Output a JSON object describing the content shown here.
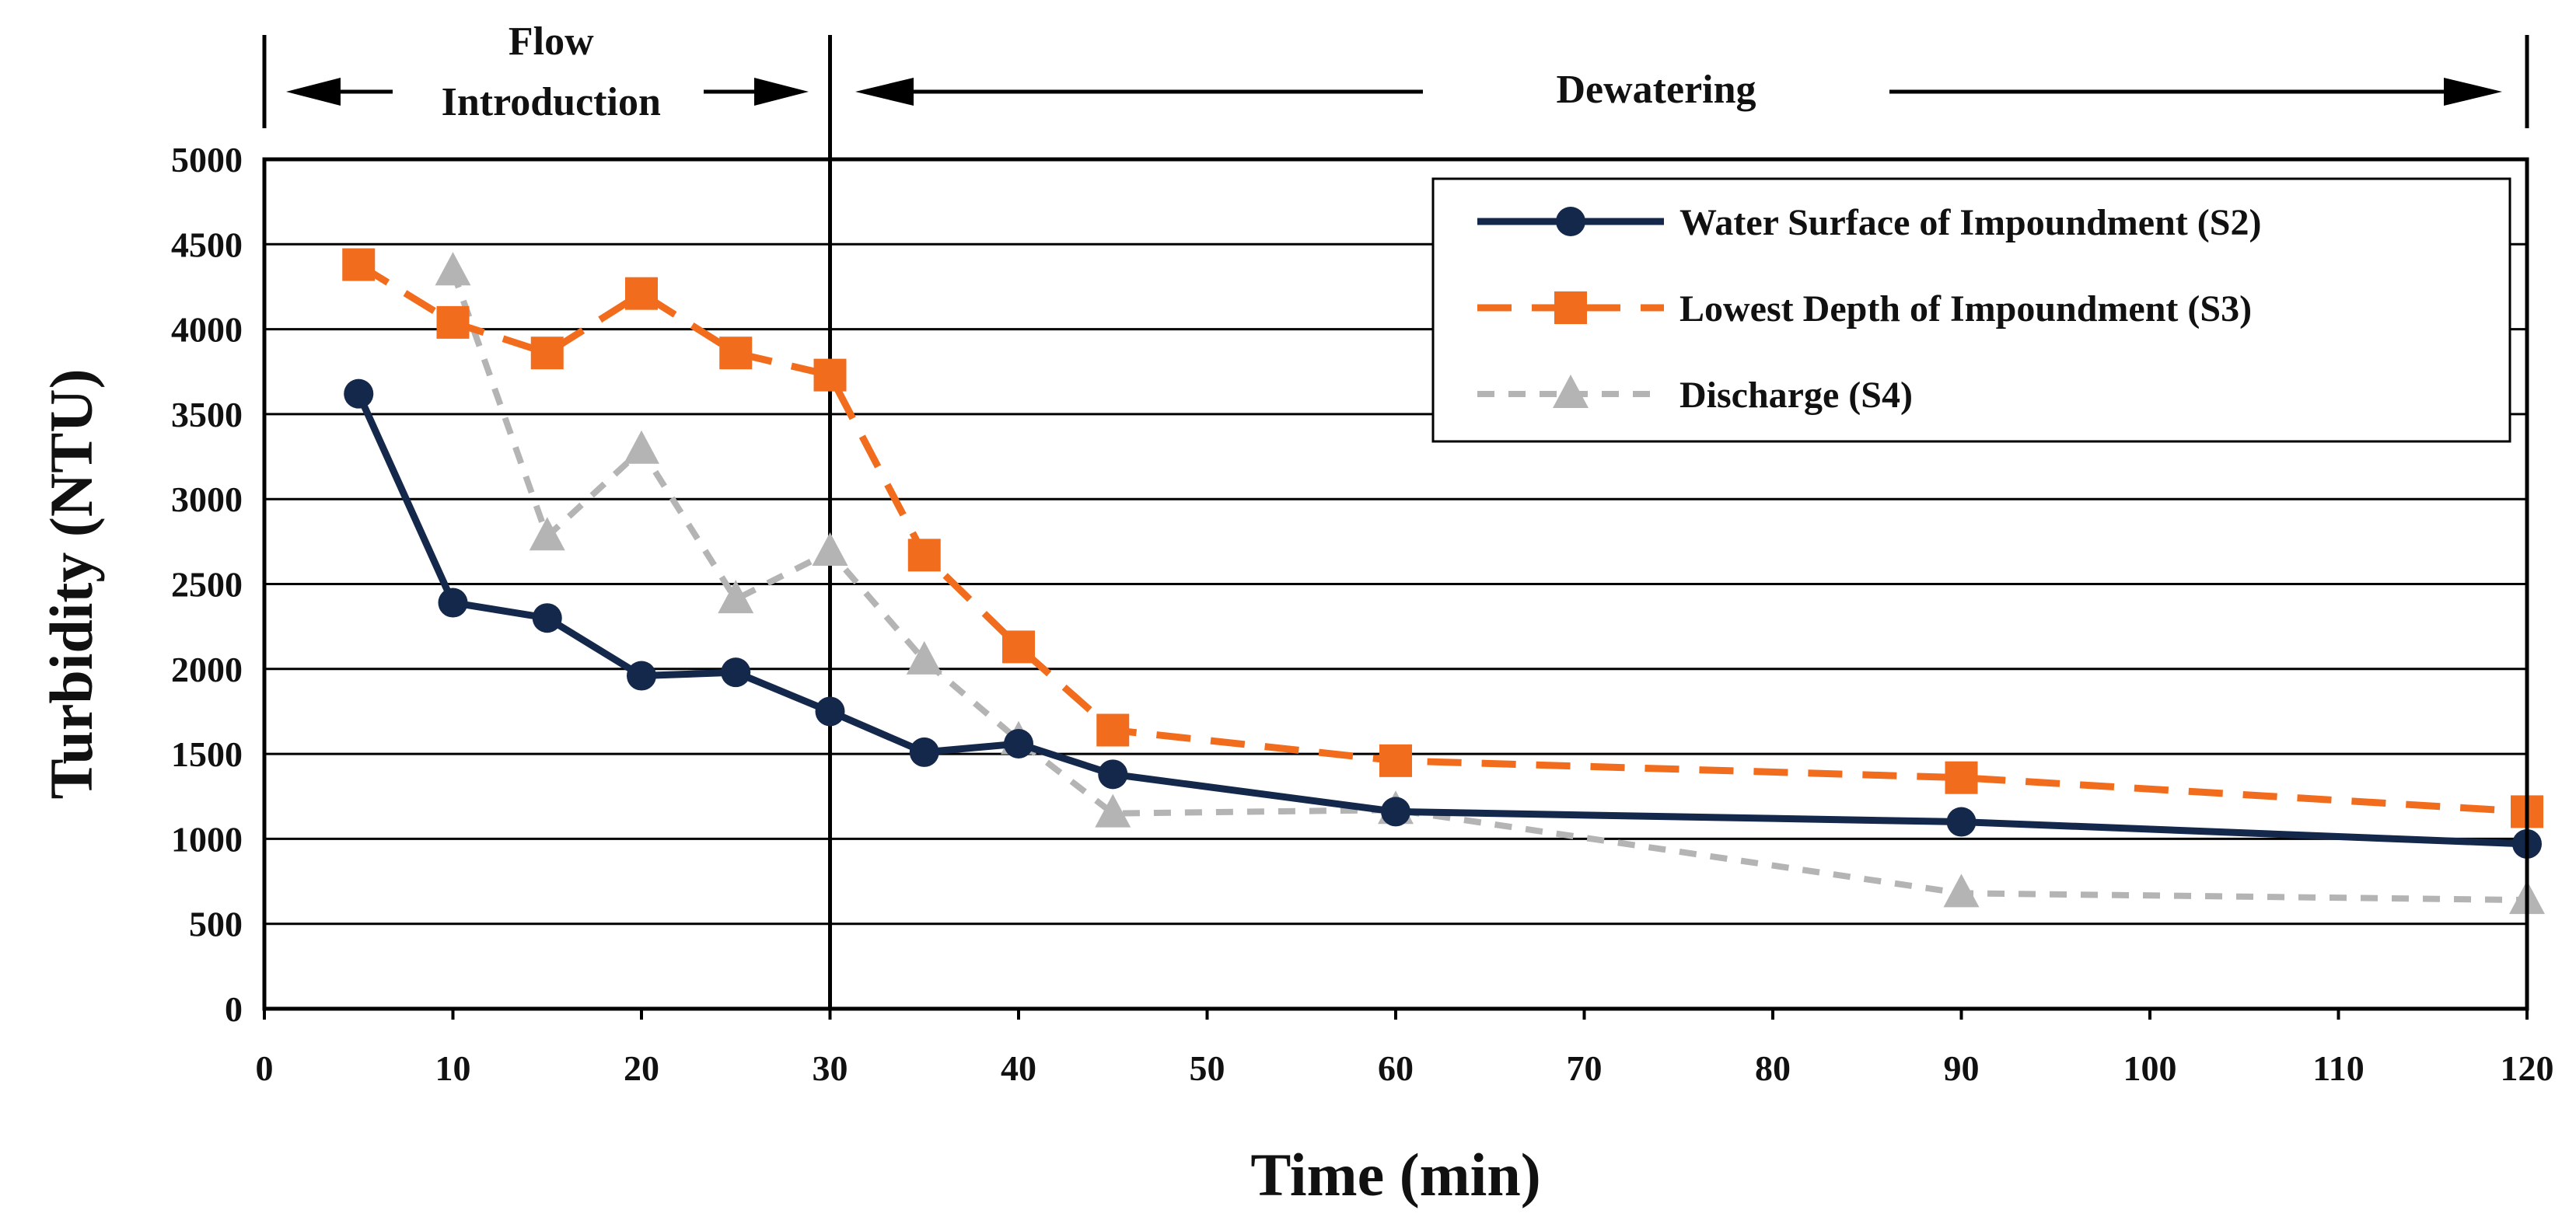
{
  "chart_data": {
    "type": "line",
    "title": "",
    "xlabel": "Time (min)",
    "ylabel": "Turbidity (NTU)",
    "xlim": [
      0,
      120
    ],
    "ylim": [
      0,
      5000
    ],
    "x_ticks": [
      0,
      10,
      20,
      30,
      40,
      50,
      60,
      70,
      80,
      90,
      100,
      110,
      120
    ],
    "y_ticks": [
      0,
      500,
      1000,
      1500,
      2000,
      2500,
      3000,
      3500,
      4000,
      4500,
      5000
    ],
    "grid": "horizontal",
    "legend_position": "top-right",
    "phases": [
      {
        "label_lines": [
          "Flow",
          "Introduction"
        ],
        "from": 0,
        "to": 30
      },
      {
        "label_lines": [
          "Dewatering"
        ],
        "from": 30,
        "to": 120
      }
    ],
    "divider_x": 30,
    "series": [
      {
        "name": "Water Surface of Impoundment (S2)",
        "color": "#14284b",
        "style": "solid",
        "marker": "circle",
        "x": [
          5,
          10,
          15,
          20,
          25,
          30,
          35,
          40,
          45,
          60,
          90,
          120
        ],
        "values": [
          3620,
          2390,
          2300,
          1960,
          1980,
          1750,
          1510,
          1560,
          1380,
          1160,
          1100,
          970
        ]
      },
      {
        "name": "Lowest Depth of Impoundment (S3)",
        "color": "#f26c1d",
        "style": "dashed",
        "marker": "square",
        "x": [
          5,
          10,
          15,
          20,
          25,
          30,
          35,
          40,
          45,
          60,
          90,
          120
        ],
        "values": [
          4380,
          4040,
          3860,
          4210,
          3860,
          3730,
          2670,
          2130,
          1640,
          1460,
          1360,
          1160
        ]
      },
      {
        "name": "Discharge (S4)",
        "color": "#b4b4b4",
        "style": "dotted",
        "marker": "triangle",
        "x": [
          10,
          15,
          20,
          25,
          30,
          35,
          40,
          45,
          60,
          90,
          120
        ],
        "values": [
          4340,
          2780,
          3290,
          2410,
          2690,
          2050,
          1580,
          1150,
          1170,
          680,
          640
        ]
      }
    ]
  }
}
